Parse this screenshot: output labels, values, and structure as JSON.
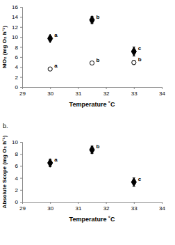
{
  "chart_data": [
    {
      "type": "scatter",
      "ylabel": "MO₂ (mg O₂ h⁻¹)",
      "xlabel": "Temperature ˚C",
      "xlim": [
        29,
        34
      ],
      "xticks": [
        29,
        30,
        31,
        32,
        33,
        34
      ],
      "ylim": [
        0,
        16
      ],
      "yticks": [
        0,
        2,
        4,
        6,
        8,
        10,
        12,
        14,
        16
      ],
      "series": [
        {
          "x": [
            30,
            31.5,
            33
          ],
          "values": [
            9.7,
            13.4,
            7.1
          ],
          "errors": [
            0.4,
            0.7,
            0.9
          ],
          "annotations": [
            "a",
            "b",
            "c"
          ],
          "color": "#000000",
          "marker": "diamond"
        },
        {
          "x": [
            30,
            31.5,
            33
          ],
          "values": [
            3.6,
            4.8,
            4.9
          ],
          "errors": [
            0.2,
            0.2,
            0.4
          ],
          "annotations": [
            "a",
            "b",
            "b"
          ],
          "color": "#000000",
          "marker": "open-circle"
        }
      ]
    },
    {
      "type": "scatter",
      "title": "b.",
      "ylabel": "Absolute Scope (mg O₂ h⁻¹)",
      "xlabel": "Temperature ˚C",
      "xlim": [
        29,
        34
      ],
      "xticks": [
        29,
        30,
        31,
        32,
        33,
        34
      ],
      "ylim": [
        0,
        10
      ],
      "yticks": [
        0,
        2,
        4,
        6,
        8,
        10
      ],
      "series": [
        {
          "x": [
            30,
            31.5,
            33
          ],
          "values": [
            6.5,
            8.7,
            3.3
          ],
          "errors": [
            0.6,
            0.6,
            0.7
          ],
          "annotations": [
            "a",
            "b",
            "c"
          ],
          "color": "#000000",
          "marker": "diamond"
        }
      ]
    }
  ]
}
